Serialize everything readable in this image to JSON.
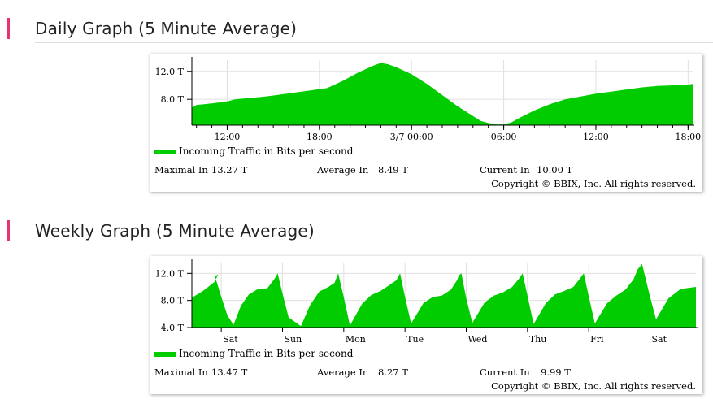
{
  "daily": {
    "title": "Daily Graph (5 Minute Average)",
    "legend": "Incoming Traffic in Bits per second",
    "stats": {
      "max_label": "Maximal In",
      "max_value": "13.27 T",
      "avg_label": "Average In",
      "avg_value": "8.49 T",
      "cur_label": "Current In",
      "cur_value": "10.00 T"
    },
    "copyright": "Copyright © BBIX, Inc. All rights reserved."
  },
  "weekly": {
    "title": "Weekly Graph (5 Minute Average)",
    "legend": "Incoming Traffic in Bits per second",
    "stats": {
      "max_label": "Maximal In",
      "max_value": "13.47 T",
      "avg_label": "Average In",
      "avg_value": "8.27 T",
      "cur_label": "Current In",
      "cur_value": "9.99 T"
    },
    "copyright": "Copyright © BBIX, Inc. All rights reserved."
  },
  "chart_data": [
    {
      "type": "area",
      "title": "Daily Graph (5 Minute Average)",
      "color": "#00cc00",
      "x_unit": "hours",
      "x_ticks": [
        {
          "label": "12:00",
          "x": 12
        },
        {
          "label": "18:00",
          "x": 18
        },
        {
          "label": "3/7 00:00",
          "x": 24
        },
        {
          "label": "06:00",
          "x": 30
        },
        {
          "label": "12:00",
          "x": 36
        },
        {
          "label": "18:00",
          "x": 42
        }
      ],
      "y_ticks": [
        {
          "label": "8.0 T",
          "value": 8
        },
        {
          "label": "12.0 T",
          "value": 12
        }
      ],
      "xlim": [
        9.7,
        42.3
      ],
      "ylim": [
        4.3,
        13.6
      ],
      "series": [
        {
          "x": [
            9.7,
            10.0,
            11.0,
            12.0,
            12.5,
            13.5,
            14.5,
            15.5,
            16.5,
            17.5,
            18.5,
            19.5,
            20.5,
            21.5,
            22.0,
            22.5,
            23.0,
            24.0,
            25.0,
            26.0,
            27.0,
            28.0,
            28.5,
            29.0,
            29.5,
            30.0,
            30.5,
            31.0,
            32.0,
            33.0,
            34.0,
            35.0,
            36.0,
            37.0,
            38.0,
            39.0,
            40.0,
            41.0,
            42.0,
            42.3
          ],
          "values": [
            6.8,
            7.2,
            7.4,
            7.7,
            8.0,
            8.2,
            8.4,
            8.7,
            9.0,
            9.3,
            9.6,
            10.6,
            11.8,
            12.8,
            13.2,
            13.0,
            12.6,
            11.6,
            10.2,
            8.6,
            7.0,
            5.6,
            4.9,
            4.6,
            4.4,
            4.4,
            4.7,
            5.3,
            6.4,
            7.3,
            8.0,
            8.4,
            8.8,
            9.1,
            9.4,
            9.7,
            9.9,
            10.0,
            10.1,
            10.2
          ]
        }
      ]
    },
    {
      "type": "area",
      "title": "Weekly Graph (5 Minute Average)",
      "color": "#00cc00",
      "x_unit": "days",
      "x_ticks": [
        {
          "label": "Sat",
          "x": 0
        },
        {
          "label": "Sun",
          "x": 1
        },
        {
          "label": "Mon",
          "x": 2
        },
        {
          "label": "Tue",
          "x": 3
        },
        {
          "label": "Wed",
          "x": 4
        },
        {
          "label": "Thu",
          "x": 5
        },
        {
          "label": "Fri",
          "x": 6
        },
        {
          "label": "Sat",
          "x": 7
        }
      ],
      "y_ticks": [
        {
          "label": "4.0 T",
          "value": 4
        },
        {
          "label": "8.0 T",
          "value": 8
        },
        {
          "label": "12.0 T",
          "value": 12
        }
      ],
      "xlim": [
        -0.48,
        7.75
      ],
      "ylim": [
        4.0,
        13.6
      ],
      "series": [
        {
          "x": [
            -0.48,
            -0.3,
            -0.1,
            -0.05,
            -0.1,
            0.0,
            0.1,
            0.2,
            0.32,
            0.45,
            0.6,
            0.75,
            0.87,
            0.92,
            1.0,
            1.1,
            1.3,
            1.45,
            1.6,
            1.75,
            1.85,
            1.91,
            2.0,
            2.1,
            2.3,
            2.45,
            2.6,
            2.75,
            2.86,
            2.92,
            3.0,
            3.1,
            3.3,
            3.45,
            3.6,
            3.75,
            3.85,
            3.88,
            3.92,
            4.0,
            4.1,
            4.3,
            4.45,
            4.6,
            4.75,
            4.86,
            4.92,
            5.0,
            5.1,
            5.3,
            5.45,
            5.6,
            5.75,
            5.87,
            5.92,
            6.0,
            6.1,
            6.3,
            6.45,
            6.6,
            6.73,
            6.8,
            6.87,
            7.0,
            7.1,
            7.3,
            7.5,
            7.75
          ],
          "values": [
            8.4,
            9.4,
            10.8,
            11.9,
            11.5,
            8.5,
            5.8,
            4.4,
            7.2,
            8.9,
            9.7,
            9.8,
            11.2,
            12.0,
            9.0,
            5.5,
            4.2,
            7.3,
            9.3,
            10.0,
            10.6,
            12.0,
            8.5,
            4.3,
            7.5,
            8.8,
            9.4,
            10.3,
            11.0,
            12.0,
            8.5,
            4.6,
            7.6,
            8.5,
            8.7,
            9.6,
            11.0,
            11.7,
            12.0,
            8.3,
            4.7,
            7.7,
            8.7,
            9.2,
            10.0,
            11.2,
            12.0,
            8.7,
            4.5,
            7.6,
            8.9,
            9.4,
            10.0,
            11.4,
            12.0,
            8.6,
            4.6,
            7.6,
            8.7,
            9.6,
            11.1,
            12.6,
            13.4,
            8.6,
            5.2,
            8.3,
            9.7,
            10.0
          ]
        }
      ]
    }
  ]
}
